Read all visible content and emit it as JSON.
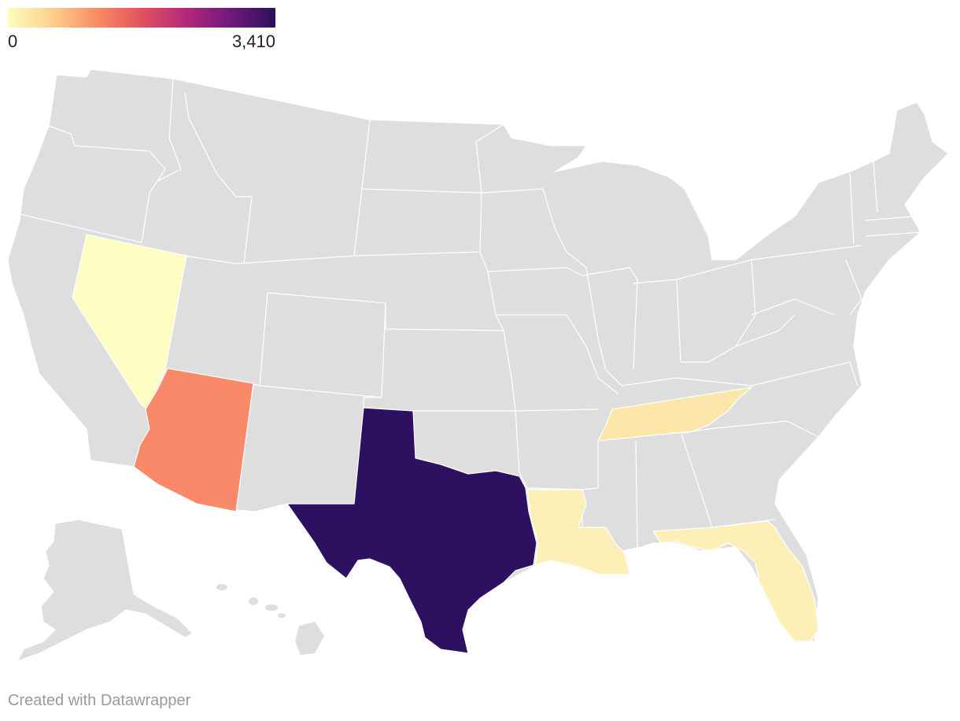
{
  "legend": {
    "min_label": "0",
    "max_label": "3,410",
    "min_value": 0,
    "max_value": 3410,
    "gradient_colors": [
      "#fefcbf",
      "#fcd08b",
      "#f98c64",
      "#e2525e",
      "#b3287a",
      "#6e1a7b",
      "#2b0f5b"
    ]
  },
  "map": {
    "no_data_color": "#dedede",
    "highlighted_states": [
      {
        "name": "Texas",
        "color": "#2d1160"
      },
      {
        "name": "Arizona",
        "color": "#f98968"
      },
      {
        "name": "Nevada",
        "color": "#fdfdc4"
      },
      {
        "name": "Tennessee",
        "color": "#fce6a9"
      },
      {
        "name": "Louisiana",
        "color": "#fdf0b6"
      },
      {
        "name": "Florida",
        "color": "#fdf0b6"
      }
    ]
  },
  "footer": {
    "credit": "Created with Datawrapper"
  }
}
